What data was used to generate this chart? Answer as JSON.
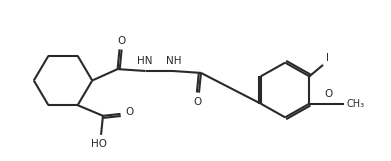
{
  "bg_color": "#ffffff",
  "line_color": "#2a2a2a",
  "line_width": 1.5,
  "font_size": 7.5,
  "xlim": [
    0,
    10
  ],
  "ylim": [
    0,
    4.2
  ]
}
